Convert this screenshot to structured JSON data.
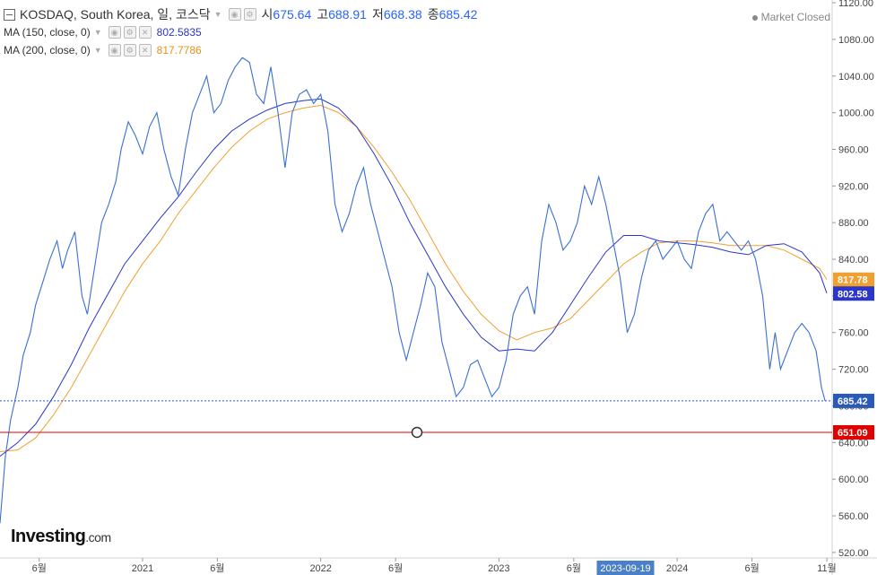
{
  "legend": {
    "symbol": "KOSDAQ, South Korea, 일, 코스닥",
    "open_label": "시",
    "open": "675.64",
    "high_label": "고",
    "high": "688.91",
    "low_label": "저",
    "low": "668.38",
    "close_label": "종",
    "close": "685.42",
    "ma150": {
      "label": "MA (150, close, 0)",
      "value": "802.5835",
      "color": "#2a35c9"
    },
    "ma200": {
      "label": "MA (200, close, 0)",
      "value": "817.7786",
      "color": "#f0a030"
    }
  },
  "market_status": "Market Closed",
  "logo": {
    "main": "Investing",
    "suffix": ".com"
  },
  "colors": {
    "price": "#3a6fd4",
    "support": "#e00000",
    "last_price_tag": "#2a5ab8"
  },
  "chart_data": {
    "type": "line",
    "y_ticks": [
      "1120.00",
      "1080.00",
      "1040.00",
      "1000.00",
      "960.00",
      "920.00",
      "880.00",
      "840.00",
      "800.00",
      "760.00",
      "720.00",
      "680.00",
      "640.00",
      "600.00",
      "560.00",
      "520.00"
    ],
    "y_tick_values": [
      1120,
      1080,
      1040,
      1000,
      960,
      920,
      880,
      840,
      800,
      760,
      720,
      680,
      640,
      600,
      560,
      520
    ],
    "ylim": [
      514,
      1123
    ],
    "x_labels": [
      "6월",
      "2021",
      "6월",
      "2022",
      "6월",
      "2023",
      "6월",
      "2024",
      "6월",
      "11월"
    ],
    "x_label_positions": [
      2020.42,
      2021.0,
      2021.42,
      2022.0,
      2022.42,
      2023.0,
      2023.42,
      2024.0,
      2024.42,
      2024.84
    ],
    "xlim": [
      2020.2,
      2024.87
    ],
    "crosshair_x_label": "2023-09-19",
    "crosshair_x": 2023.71,
    "price_series": {
      "name": "KOSDAQ",
      "points": [
        [
          2020.2,
          552
        ],
        [
          2020.23,
          625
        ],
        [
          2020.26,
          665
        ],
        [
          2020.3,
          700
        ],
        [
          2020.33,
          735
        ],
        [
          2020.37,
          760
        ],
        [
          2020.4,
          790
        ],
        [
          2020.44,
          815
        ],
        [
          2020.48,
          840
        ],
        [
          2020.52,
          860
        ],
        [
          2020.55,
          830
        ],
        [
          2020.58,
          850
        ],
        [
          2020.62,
          870
        ],
        [
          2020.66,
          800
        ],
        [
          2020.69,
          780
        ],
        [
          2020.73,
          830
        ],
        [
          2020.77,
          880
        ],
        [
          2020.81,
          900
        ],
        [
          2020.85,
          925
        ],
        [
          2020.88,
          960
        ],
        [
          2020.92,
          990
        ],
        [
          2020.96,
          975
        ],
        [
          2021.0,
          955
        ],
        [
          2021.04,
          985
        ],
        [
          2021.08,
          1000
        ],
        [
          2021.12,
          960
        ],
        [
          2021.16,
          930
        ],
        [
          2021.2,
          910
        ],
        [
          2021.24,
          960
        ],
        [
          2021.28,
          1000
        ],
        [
          2021.32,
          1020
        ],
        [
          2021.36,
          1040
        ],
        [
          2021.4,
          1000
        ],
        [
          2021.44,
          1010
        ],
        [
          2021.48,
          1035
        ],
        [
          2021.52,
          1050
        ],
        [
          2021.56,
          1060
        ],
        [
          2021.6,
          1055
        ],
        [
          2021.64,
          1020
        ],
        [
          2021.68,
          1010
        ],
        [
          2021.72,
          1050
        ],
        [
          2021.76,
          1000
        ],
        [
          2021.8,
          940
        ],
        [
          2021.84,
          1000
        ],
        [
          2021.88,
          1020
        ],
        [
          2021.92,
          1025
        ],
        [
          2021.96,
          1010
        ],
        [
          2022.0,
          1020
        ],
        [
          2022.04,
          980
        ],
        [
          2022.08,
          900
        ],
        [
          2022.12,
          870
        ],
        [
          2022.16,
          890
        ],
        [
          2022.2,
          920
        ],
        [
          2022.24,
          940
        ],
        [
          2022.28,
          900
        ],
        [
          2022.32,
          870
        ],
        [
          2022.36,
          840
        ],
        [
          2022.4,
          810
        ],
        [
          2022.44,
          760
        ],
        [
          2022.48,
          730
        ],
        [
          2022.52,
          760
        ],
        [
          2022.56,
          790
        ],
        [
          2022.6,
          825
        ],
        [
          2022.64,
          810
        ],
        [
          2022.68,
          750
        ],
        [
          2022.72,
          720
        ],
        [
          2022.76,
          690
        ],
        [
          2022.8,
          700
        ],
        [
          2022.84,
          725
        ],
        [
          2022.88,
          730
        ],
        [
          2022.92,
          710
        ],
        [
          2022.96,
          690
        ],
        [
          2023.0,
          700
        ],
        [
          2023.04,
          730
        ],
        [
          2023.08,
          780
        ],
        [
          2023.12,
          800
        ],
        [
          2023.16,
          810
        ],
        [
          2023.2,
          780
        ],
        [
          2023.24,
          860
        ],
        [
          2023.28,
          900
        ],
        [
          2023.32,
          880
        ],
        [
          2023.36,
          850
        ],
        [
          2023.4,
          860
        ],
        [
          2023.44,
          880
        ],
        [
          2023.48,
          920
        ],
        [
          2023.52,
          900
        ],
        [
          2023.56,
          930
        ],
        [
          2023.6,
          900
        ],
        [
          2023.64,
          860
        ],
        [
          2023.68,
          820
        ],
        [
          2023.72,
          760
        ],
        [
          2023.76,
          780
        ],
        [
          2023.8,
          820
        ],
        [
          2023.84,
          850
        ],
        [
          2023.88,
          860
        ],
        [
          2023.92,
          840
        ],
        [
          2023.96,
          850
        ],
        [
          2024.0,
          860
        ],
        [
          2024.04,
          840
        ],
        [
          2024.08,
          830
        ],
        [
          2024.12,
          870
        ],
        [
          2024.16,
          890
        ],
        [
          2024.2,
          900
        ],
        [
          2024.24,
          860
        ],
        [
          2024.28,
          870
        ],
        [
          2024.32,
          860
        ],
        [
          2024.36,
          850
        ],
        [
          2024.4,
          860
        ],
        [
          2024.44,
          840
        ],
        [
          2024.48,
          800
        ],
        [
          2024.52,
          720
        ],
        [
          2024.55,
          760
        ],
        [
          2024.58,
          720
        ],
        [
          2024.62,
          740
        ],
        [
          2024.66,
          760
        ],
        [
          2024.7,
          770
        ],
        [
          2024.74,
          760
        ],
        [
          2024.78,
          740
        ],
        [
          2024.81,
          700
        ],
        [
          2024.83,
          685.42
        ]
      ]
    },
    "ma150_series": {
      "name": "MA (150, close, 0)",
      "points": [
        [
          2020.2,
          625
        ],
        [
          2020.3,
          640
        ],
        [
          2020.4,
          660
        ],
        [
          2020.5,
          690
        ],
        [
          2020.6,
          725
        ],
        [
          2020.7,
          765
        ],
        [
          2020.8,
          800
        ],
        [
          2020.9,
          835
        ],
        [
          2021.0,
          860
        ],
        [
          2021.1,
          885
        ],
        [
          2021.2,
          908
        ],
        [
          2021.3,
          935
        ],
        [
          2021.4,
          960
        ],
        [
          2021.5,
          980
        ],
        [
          2021.6,
          993
        ],
        [
          2021.7,
          1003
        ],
        [
          2021.8,
          1010
        ],
        [
          2021.9,
          1013
        ],
        [
          2022.0,
          1015
        ],
        [
          2022.1,
          1005
        ],
        [
          2022.2,
          985
        ],
        [
          2022.3,
          955
        ],
        [
          2022.4,
          920
        ],
        [
          2022.5,
          880
        ],
        [
          2022.6,
          845
        ],
        [
          2022.7,
          810
        ],
        [
          2022.8,
          780
        ],
        [
          2022.9,
          755
        ],
        [
          2023.0,
          740
        ],
        [
          2023.1,
          742
        ],
        [
          2023.2,
          740
        ],
        [
          2023.3,
          760
        ],
        [
          2023.4,
          790
        ],
        [
          2023.5,
          820
        ],
        [
          2023.6,
          848
        ],
        [
          2023.7,
          866
        ],
        [
          2023.8,
          866
        ],
        [
          2023.9,
          860
        ],
        [
          2024.0,
          858
        ],
        [
          2024.1,
          856
        ],
        [
          2024.2,
          853
        ],
        [
          2024.3,
          848
        ],
        [
          2024.4,
          845
        ],
        [
          2024.5,
          855
        ],
        [
          2024.6,
          857
        ],
        [
          2024.7,
          848
        ],
        [
          2024.8,
          825
        ],
        [
          2024.84,
          803
        ]
      ]
    },
    "ma200_series": {
      "name": "MA (200, close, 0)",
      "points": [
        [
          2020.2,
          630
        ],
        [
          2020.3,
          632
        ],
        [
          2020.4,
          645
        ],
        [
          2020.5,
          670
        ],
        [
          2020.6,
          700
        ],
        [
          2020.7,
          735
        ],
        [
          2020.8,
          770
        ],
        [
          2020.9,
          805
        ],
        [
          2021.0,
          835
        ],
        [
          2021.1,
          860
        ],
        [
          2021.2,
          890
        ],
        [
          2021.3,
          915
        ],
        [
          2021.4,
          940
        ],
        [
          2021.5,
          962
        ],
        [
          2021.6,
          980
        ],
        [
          2021.7,
          993
        ],
        [
          2021.8,
          1000
        ],
        [
          2021.9,
          1005
        ],
        [
          2022.0,
          1008
        ],
        [
          2022.1,
          1000
        ],
        [
          2022.2,
          985
        ],
        [
          2022.3,
          962
        ],
        [
          2022.4,
          935
        ],
        [
          2022.5,
          905
        ],
        [
          2022.6,
          870
        ],
        [
          2022.7,
          835
        ],
        [
          2022.8,
          805
        ],
        [
          2022.9,
          780
        ],
        [
          2023.0,
          762
        ],
        [
          2023.1,
          752
        ],
        [
          2023.2,
          760
        ],
        [
          2023.3,
          765
        ],
        [
          2023.4,
          775
        ],
        [
          2023.5,
          795
        ],
        [
          2023.6,
          815
        ],
        [
          2023.7,
          835
        ],
        [
          2023.8,
          848
        ],
        [
          2023.9,
          858
        ],
        [
          2024.0,
          860
        ],
        [
          2024.1,
          860
        ],
        [
          2024.2,
          858
        ],
        [
          2024.3,
          855
        ],
        [
          2024.4,
          855
        ],
        [
          2024.5,
          855
        ],
        [
          2024.6,
          850
        ],
        [
          2024.7,
          840
        ],
        [
          2024.8,
          830
        ],
        [
          2024.84,
          818
        ]
      ]
    },
    "price_line": {
      "label": "685.42",
      "value": 685.42
    },
    "support_line": {
      "label": "651.09",
      "value": 651.09
    },
    "ma150_tag": {
      "label": "802.58",
      "value": 802.58
    },
    "ma200_tag": {
      "label": "817.78",
      "value": 817.78
    },
    "grid": true
  }
}
